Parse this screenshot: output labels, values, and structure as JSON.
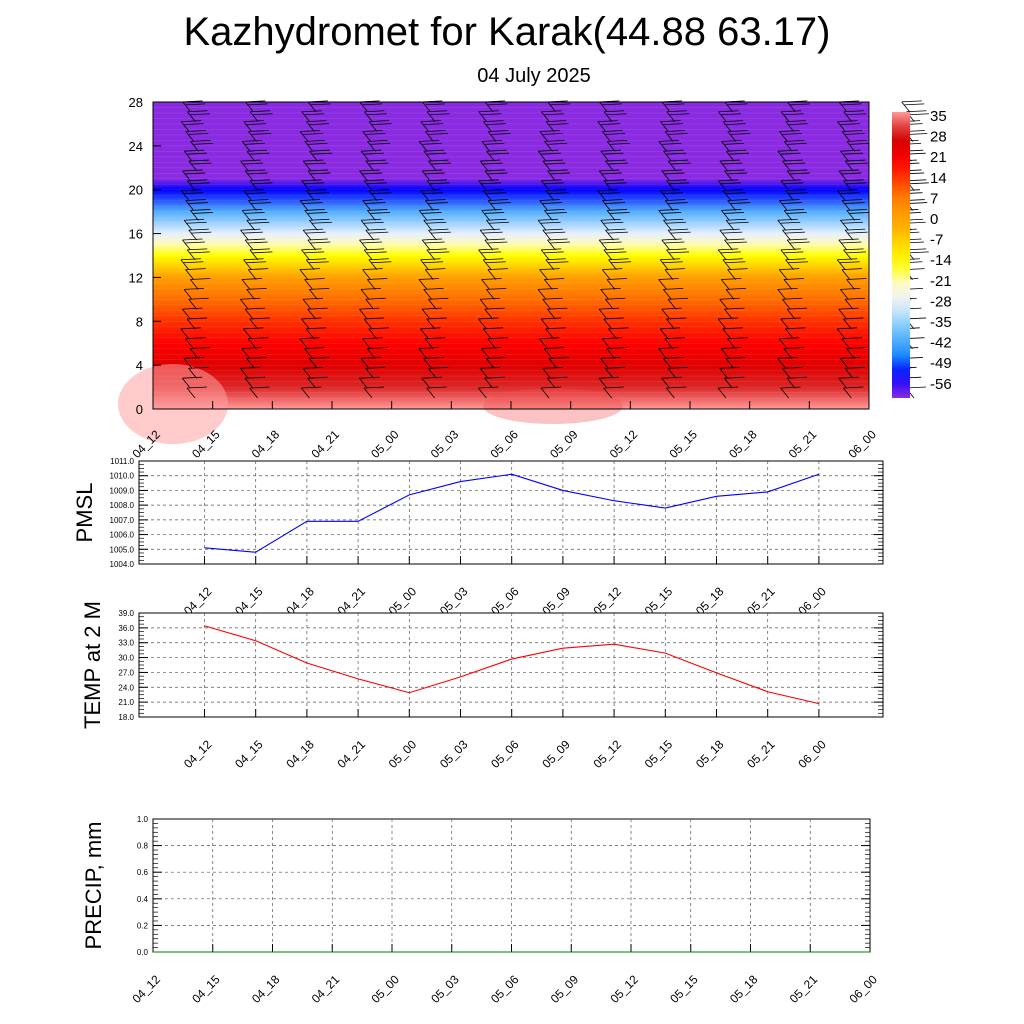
{
  "page": {
    "title": "Kazhydromet for Karak(44.88 63.17)",
    "subtitle": "04 July 2025"
  },
  "chart_data": [
    {
      "type": "heatmap",
      "name": "cross-section",
      "title": "",
      "xlabel": "",
      "ylabel": "",
      "x": [
        "04_12",
        "04_15",
        "04_18",
        "04_21",
        "05_00",
        "05_03",
        "05_06",
        "05_09",
        "05_12",
        "05_15",
        "05_18",
        "05_21",
        "06_00"
      ],
      "y_ticks": [
        0,
        4,
        8,
        12,
        16,
        20,
        24,
        28
      ],
      "ylim": [
        0,
        28
      ],
      "temperature_profile": {
        "levels": [
          0,
          2,
          4,
          6,
          8,
          10,
          12,
          14,
          15,
          16,
          18,
          20,
          21,
          22,
          24,
          28
        ],
        "values": [
          38,
          31,
          26,
          21,
          16,
          10,
          2,
          -14,
          -20,
          -28,
          -40,
          -52,
          -60,
          -66,
          -70,
          -72
        ]
      },
      "colorbar": {
        "labels": [
          "35",
          "28",
          "21",
          "14",
          "7",
          "0",
          "-7",
          "-14",
          "-21",
          "-28",
          "-35",
          "-42",
          "-49",
          "-56"
        ],
        "range": [
          -60,
          38
        ]
      },
      "wind_barbs": true,
      "grid": false
    },
    {
      "type": "line",
      "name": "pmsl",
      "title": "",
      "xlabel": "",
      "ylabel": "PMSL",
      "x": [
        "04_12",
        "04_15",
        "04_18",
        "04_21",
        "05_00",
        "05_03",
        "05_06",
        "05_09",
        "05_12",
        "05_15",
        "05_18",
        "05_21",
        "06_00"
      ],
      "series": [
        {
          "values": [
            1005.1,
            1004.8,
            1006.9,
            1006.9,
            1008.7,
            1009.6,
            1010.1,
            1009.0,
            1008.3,
            1007.8,
            1008.6,
            1008.9,
            1010.1
          ]
        }
      ],
      "y_ticks": [
        "1004.0",
        "1005.0",
        "1006.0",
        "1007.0",
        "1008.0",
        "1009.0",
        "1010.0",
        "1011.0"
      ],
      "ylim": [
        1004,
        1011
      ],
      "grid": true,
      "color": "#0000ff"
    },
    {
      "type": "line",
      "name": "temp2m",
      "title": "",
      "xlabel": "",
      "ylabel": "TEMP at 2 M",
      "x": [
        "04_12",
        "04_15",
        "04_18",
        "04_21",
        "05_00",
        "05_03",
        "05_06",
        "05_09",
        "05_12",
        "05_15",
        "05_18",
        "05_21",
        "06_00"
      ],
      "series": [
        {
          "values": [
            36.4,
            33.4,
            28.9,
            25.7,
            22.9,
            26.1,
            29.7,
            31.9,
            32.7,
            30.9,
            26.9,
            23.1,
            20.7
          ]
        }
      ],
      "y_ticks": [
        "18.0",
        "21.0",
        "24.0",
        "27.0",
        "30.0",
        "33.0",
        "36.0",
        "39.0"
      ],
      "ylim": [
        18,
        39
      ],
      "grid": true,
      "color": "#ff0000"
    },
    {
      "type": "line",
      "name": "precip",
      "title": "",
      "xlabel": "",
      "ylabel": "PRECIP, mm",
      "x": [
        "04_12",
        "04_15",
        "04_18",
        "04_21",
        "05_00",
        "05_03",
        "05_06",
        "05_09",
        "05_12",
        "05_15",
        "05_18",
        "05_21",
        "06_00"
      ],
      "series": [
        {
          "values": [
            0,
            0,
            0,
            0,
            0,
            0,
            0,
            0,
            0,
            0,
            0,
            0,
            0
          ]
        }
      ],
      "y_ticks": [
        "0.0",
        "0.2",
        "0.4",
        "0.6",
        "0.8",
        "1.0"
      ],
      "ylim": [
        0,
        1
      ],
      "grid": true,
      "color": "#008000"
    }
  ]
}
